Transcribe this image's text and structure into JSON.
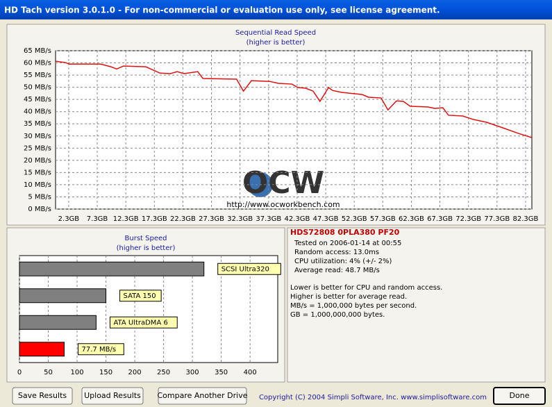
{
  "window": {
    "title": "HD Tach version 3.0.1.0  - For non-commercial or evaluation use only, see license agreement."
  },
  "watermark": {
    "logo": "OCW",
    "url": "http://www.ocworkbench.com"
  },
  "chart_data": [
    {
      "type": "line",
      "title": "Sequential Read Speed",
      "subtitle": "(higher is better)",
      "color": "#e01010",
      "grid": true,
      "xlim": [
        0,
        83.4
      ],
      "ylim": [
        0,
        65
      ],
      "xticks": [
        {
          "value": 2.3,
          "label": "2.3GB"
        },
        {
          "value": 7.3,
          "label": "7.3GB"
        },
        {
          "value": 12.3,
          "label": "12.3GB"
        },
        {
          "value": 17.3,
          "label": "17.3GB"
        },
        {
          "value": 22.3,
          "label": "22.3GB"
        },
        {
          "value": 27.3,
          "label": "27.3GB"
        },
        {
          "value": 32.3,
          "label": "32.3GB"
        },
        {
          "value": 37.3,
          "label": "37.3GB"
        },
        {
          "value": 42.3,
          "label": "42.3GB"
        },
        {
          "value": 47.3,
          "label": "47.3GB"
        },
        {
          "value": 52.3,
          "label": "52.3GB"
        },
        {
          "value": 57.3,
          "label": "57.3GB"
        },
        {
          "value": 62.3,
          "label": "62.3GB"
        },
        {
          "value": 67.3,
          "label": "67.3GB"
        },
        {
          "value": 72.3,
          "label": "72.3GB"
        },
        {
          "value": 77.3,
          "label": "77.3GB"
        },
        {
          "value": 82.3,
          "label": "82.3GB"
        }
      ],
      "yticks": [
        {
          "value": 0,
          "label": "0 MB/s"
        },
        {
          "value": 5,
          "label": "5 MB/s"
        },
        {
          "value": 10,
          "label": "10 MB/s"
        },
        {
          "value": 15,
          "label": "15 MB/s"
        },
        {
          "value": 20,
          "label": "20 MB/s"
        },
        {
          "value": 25,
          "label": "25 MB/s"
        },
        {
          "value": 30,
          "label": "30 MB/s"
        },
        {
          "value": 35,
          "label": "35 MB/s"
        },
        {
          "value": 40,
          "label": "40 MB/s"
        },
        {
          "value": 45,
          "label": "45 MB/s"
        },
        {
          "value": 50,
          "label": "50 MB/s"
        },
        {
          "value": 55,
          "label": "55 MB/s"
        },
        {
          "value": 60,
          "label": "60 MB/s"
        },
        {
          "value": 65,
          "label": "65 MB/s"
        }
      ],
      "x": [
        0,
        1.8,
        2.4,
        7.9,
        9.7,
        10.7,
        11.9,
        15.8,
        18.3,
        20.1,
        21.3,
        22.5,
        24.9,
        25.8,
        31.7,
        32.9,
        34.3,
        37.5,
        39,
        41.4,
        42.4,
        43.8,
        45.1,
        46.3,
        47.8,
        48.5,
        50.1,
        53.7,
        54.8,
        57.0,
        58.2,
        59.7,
        60.9,
        62.1,
        65.2,
        66.4,
        67.8,
        68.8,
        71.3,
        73.1,
        75.5,
        78,
        81,
        83.4
      ],
      "values": [
        60.7,
        60.1,
        59.5,
        59.5,
        58.4,
        57.5,
        58.7,
        58.4,
        55.8,
        55.6,
        56.4,
        55.6,
        56.4,
        53.6,
        53.3,
        48.4,
        52.7,
        52.4,
        51.6,
        51.3,
        49.9,
        49.6,
        48.4,
        44.2,
        49.9,
        48.7,
        47.9,
        47,
        45.9,
        45.6,
        40.7,
        44.4,
        44.2,
        42.2,
        41.9,
        41.3,
        41.6,
        38.5,
        38.2,
        36.8,
        35.6,
        33.6,
        31.1,
        29.3
      ]
    },
    {
      "type": "hbar",
      "title": "Burst Speed",
      "subtitle": "(higher is better)",
      "grid": true,
      "xlim": [
        0,
        448
      ],
      "xticks": [
        0,
        50,
        100,
        150,
        200,
        250,
        300,
        350,
        400
      ],
      "categories": [
        "SCSI Ultra320",
        "SATA 150",
        "ATA UltraDMA 6",
        null
      ],
      "values": [
        320,
        150,
        133,
        77.7
      ],
      "value_labels": [
        null,
        null,
        null,
        "77.7 MB/s"
      ],
      "colors": [
        "#808080",
        "#808080",
        "#808080",
        "#ff0000"
      ]
    }
  ],
  "info": {
    "drive": "HDS72808 0PLA380 PF20",
    "stats": [
      "Tested on 2006-01-14 at 00:55",
      "Random access: 13.0ms",
      "CPU utilization: 4% (+/- 2%)",
      "Average read: 48.7 MB/s"
    ],
    "notes": [
      "Lower is better for CPU and random access.",
      "Higher is better for average read.",
      "MB/s = 1,000,000 bytes per second.",
      "GB = 1,000,000,000 bytes."
    ]
  },
  "buttons": [
    "Save Results",
    "Upload Results",
    "Compare Another Drive",
    "Done"
  ],
  "copyright": "Copyright (C) 2004 Simpli Software, Inc. www.simplisoftware.com"
}
